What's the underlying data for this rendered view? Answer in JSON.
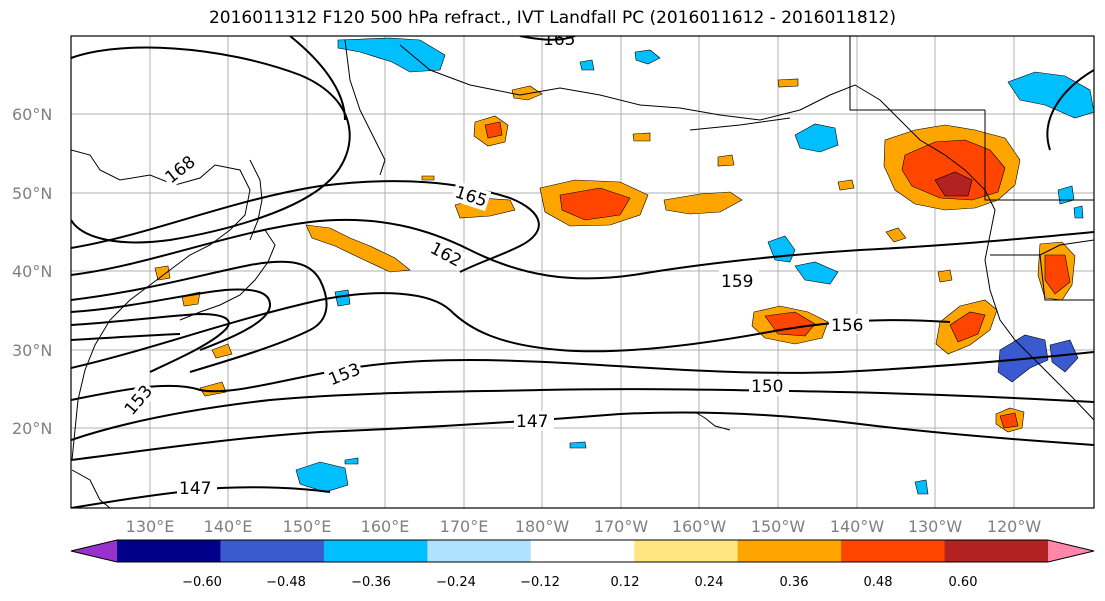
{
  "title": "2016011312 F120 500 hPa refract., IVT Landfall PC (2016011612 - 2016011812)",
  "map": {
    "lon_labels": [
      "130°E",
      "140°E",
      "150°E",
      "160°E",
      "170°E",
      "180°W",
      "170°W",
      "160°W",
      "150°W",
      "140°W",
      "130°W",
      "120°W"
    ],
    "lat_labels": [
      "60°N",
      "50°N",
      "40°N",
      "30°N",
      "20°N"
    ],
    "contour_labels": [
      "168",
      "165",
      "162",
      "159",
      "156",
      "153",
      "153",
      "150",
      "147",
      "147",
      "165"
    ]
  },
  "colorbar": {
    "ticks": [
      "−0.60",
      "−0.48",
      "−0.36",
      "−0.24",
      "−0.12",
      "0.12",
      "0.24",
      "0.36",
      "0.48",
      "0.60"
    ],
    "colors": [
      "#9932cc",
      "#00008b",
      "#3a5bd0",
      "#00bfff",
      "#b0e2ff",
      "#ffffff",
      "#ffe680",
      "#ffa500",
      "#ff4500",
      "#b22222",
      "#ff88aa"
    ]
  }
}
